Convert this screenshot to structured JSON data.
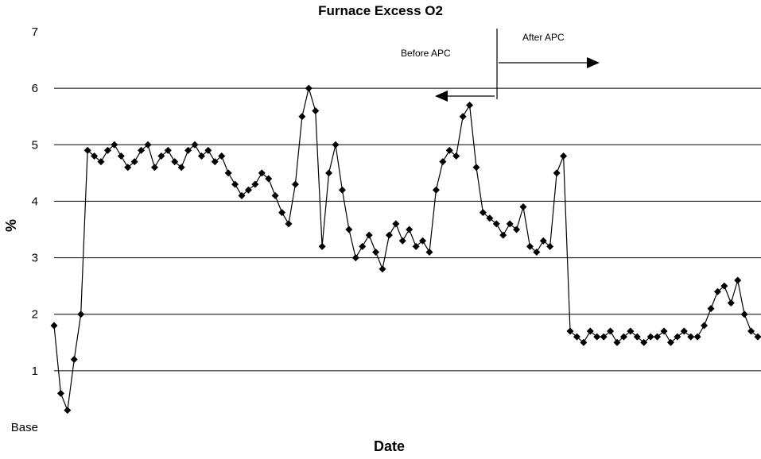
{
  "chart_data": {
    "type": "line",
    "title": "Furnace Excess O2",
    "xlabel": "Date",
    "ylabel": "%",
    "ylim": [
      0,
      7
    ],
    "y_ticks": [
      "Base",
      "1",
      "2",
      "3",
      "4",
      "5",
      "6",
      "7"
    ],
    "grid": "horizontal",
    "marker": "diamond",
    "color": "#000000",
    "series": [
      {
        "values": [
          1.8,
          0.6,
          0.3,
          1.2,
          2.0,
          4.9,
          4.8,
          4.7,
          4.9,
          5.0,
          4.8,
          4.6,
          4.7,
          4.9,
          5.0,
          4.6,
          4.8,
          4.9,
          4.7,
          4.6,
          4.9,
          5.0,
          4.8,
          4.9,
          4.7,
          4.8,
          4.5,
          4.3,
          4.1,
          4.2,
          4.3,
          4.5,
          4.4,
          4.1,
          3.8,
          3.6,
          4.3,
          5.5,
          6.0,
          5.6,
          3.2,
          4.5,
          5.0,
          4.2,
          3.5,
          3.0,
          3.2,
          3.4,
          3.1,
          2.8,
          3.4,
          3.6,
          3.3,
          3.5,
          3.2,
          3.3,
          3.1,
          4.2,
          4.7,
          4.9,
          4.8,
          5.5,
          5.7,
          4.6,
          3.8,
          3.7,
          3.6,
          3.4,
          3.6,
          3.5,
          3.9,
          3.2,
          3.1,
          3.3,
          3.2,
          4.5,
          4.8,
          1.7,
          1.6,
          1.5,
          1.7,
          1.6,
          1.6,
          1.7,
          1.5,
          1.6,
          1.7,
          1.6,
          1.5,
          1.6,
          1.6,
          1.7,
          1.5,
          1.6,
          1.7,
          1.6,
          1.6,
          1.8,
          2.1,
          2.4,
          2.5,
          2.2,
          2.6,
          2.0,
          1.7,
          1.6
        ]
      }
    ],
    "annotations": [
      {
        "text": "Before APC",
        "arrow": "left"
      },
      {
        "text": "After APC",
        "arrow": "right"
      }
    ]
  }
}
